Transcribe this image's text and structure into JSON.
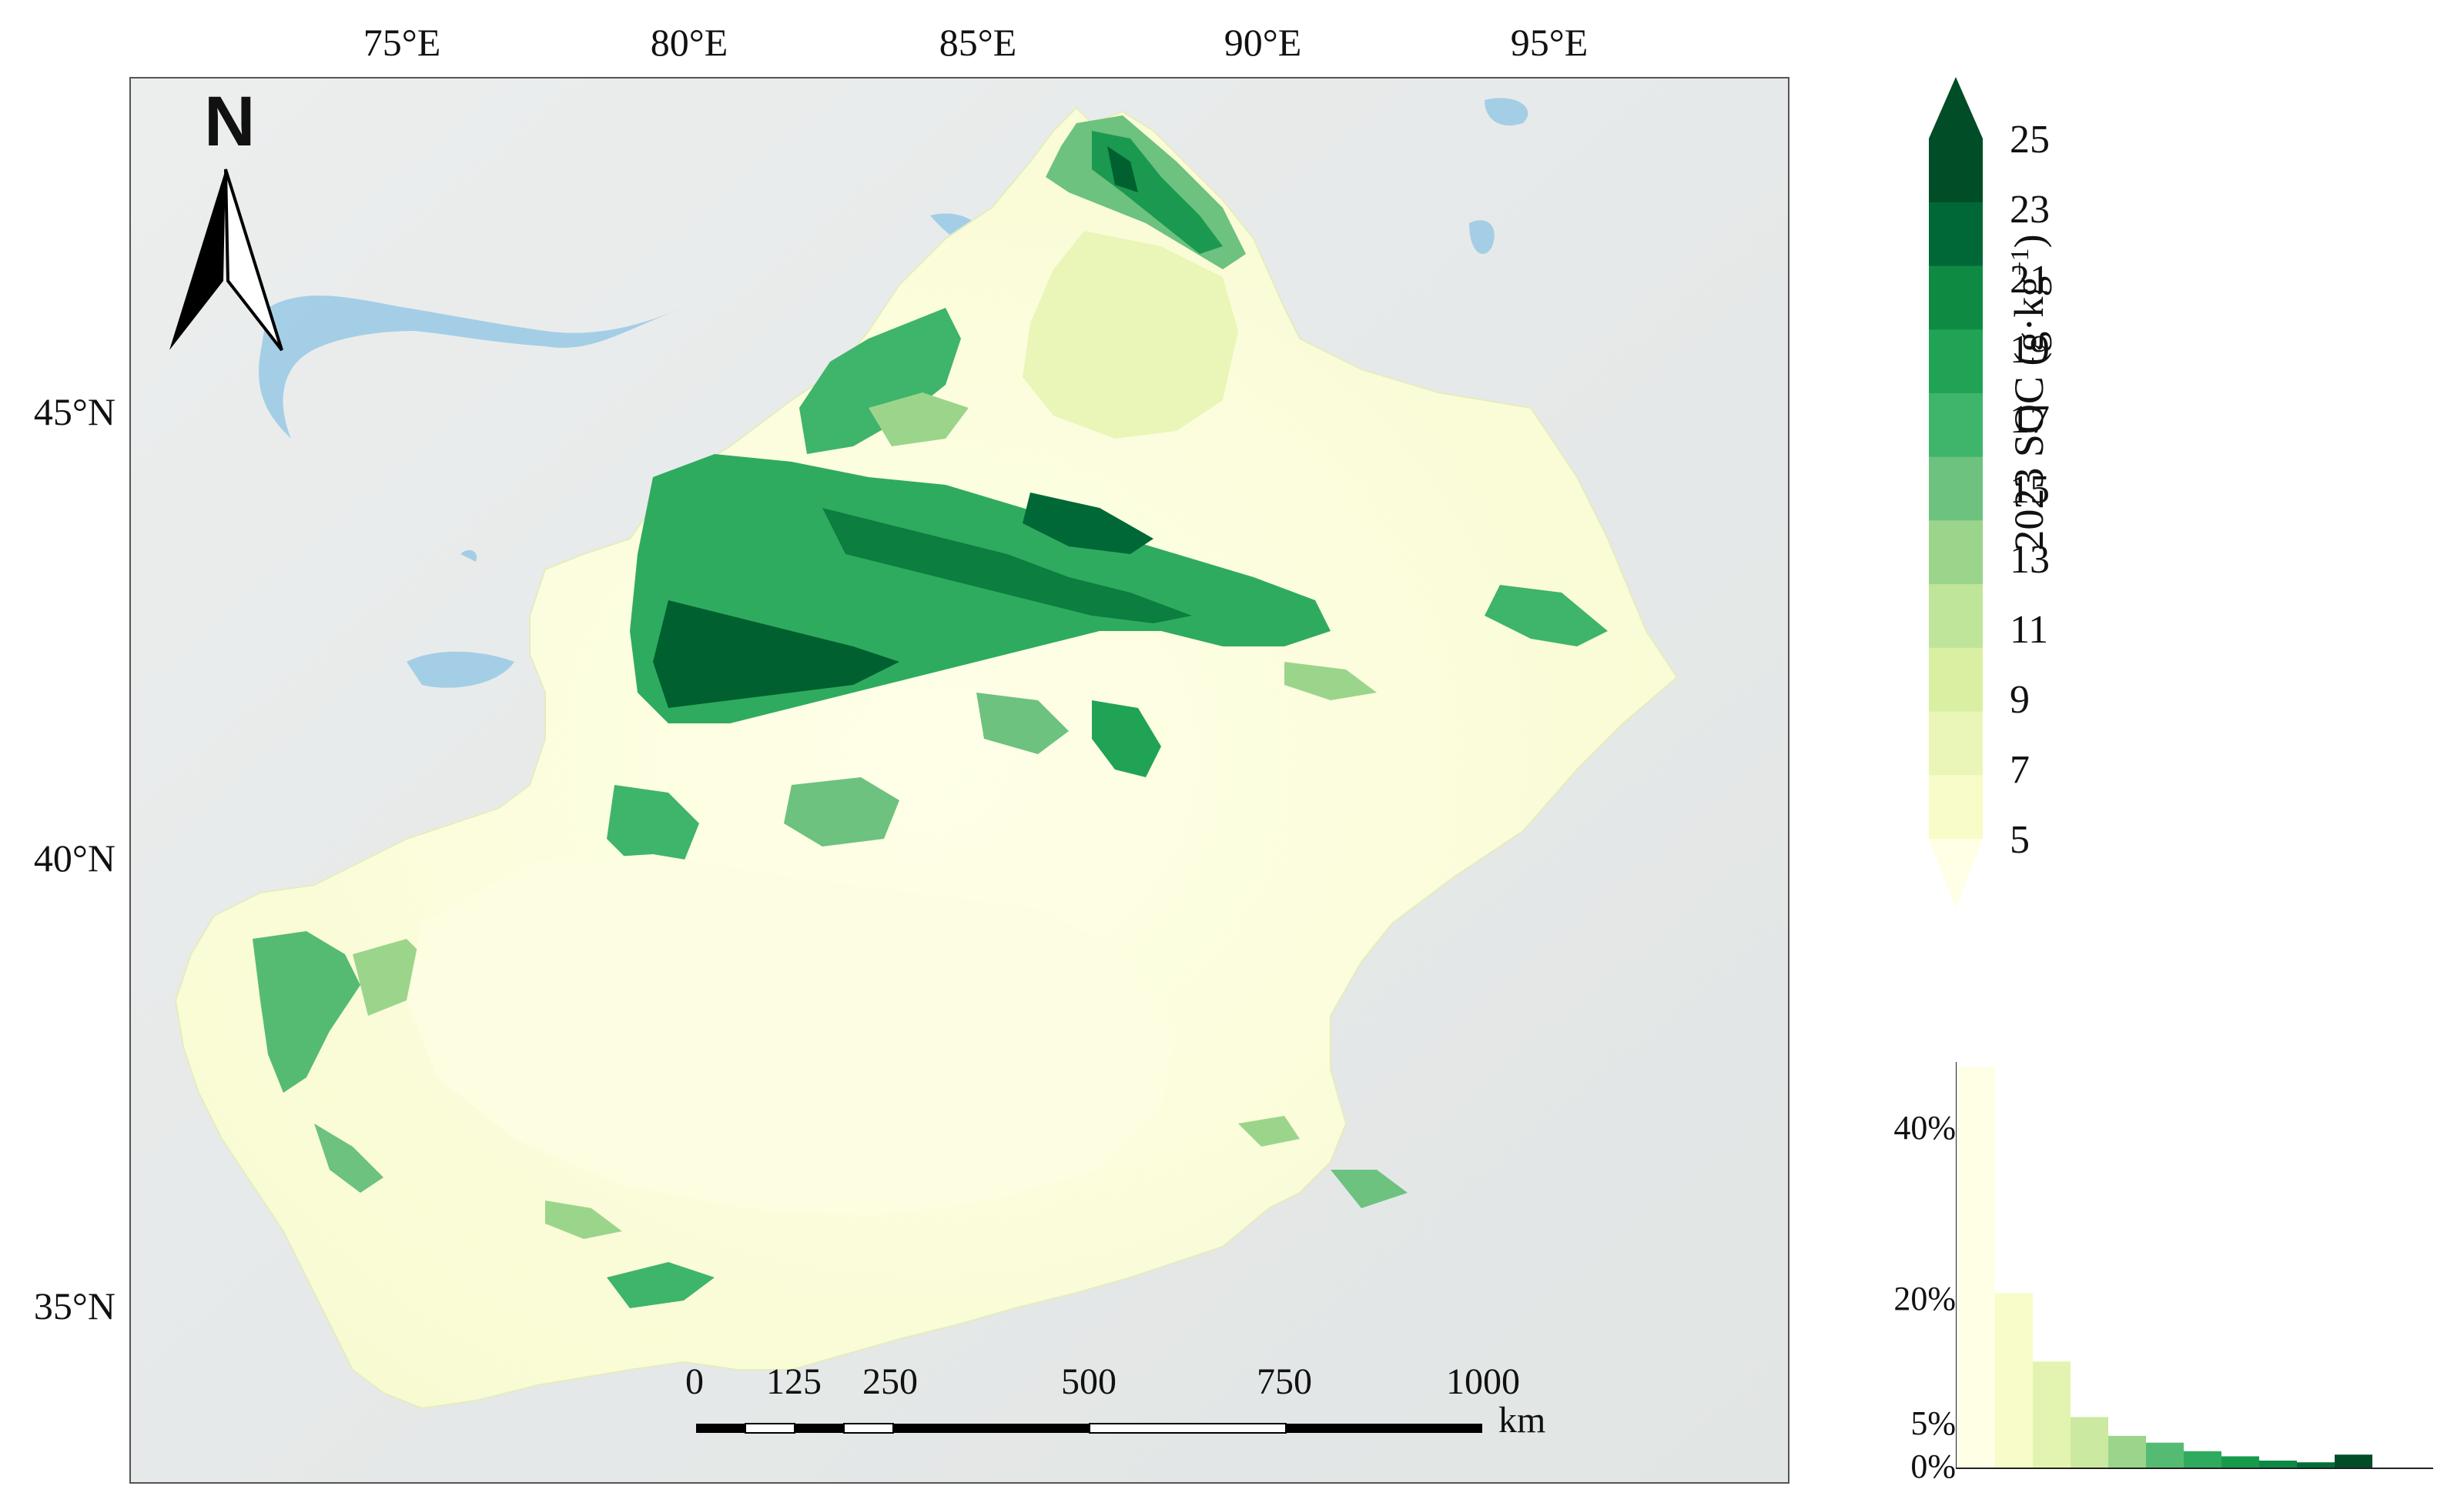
{
  "north_arrow": {
    "label": "N"
  },
  "graticule": {
    "lon_labels": [
      "75°E",
      "80°E",
      "85°E",
      "90°E",
      "95°E"
    ],
    "lat_labels": [
      "45°N",
      "40°N",
      "35°N"
    ]
  },
  "scale_bar": {
    "labels": [
      "0",
      "125",
      "250",
      "500",
      "750",
      "1000"
    ],
    "unit": "km"
  },
  "legend": {
    "title_text": "2023 SOC",
    "title_unit": "(g·kg",
    "title_exp": "−1",
    "title_close": ")",
    "tick_labels": [
      "25",
      "23",
      "21",
      "19",
      "17",
      "15",
      "13",
      "11",
      "9",
      "7",
      "5"
    ],
    "colors": [
      "#ffffe5",
      "#f7fcc8",
      "#e9f6b8",
      "#d9f0a3",
      "#bfe59a",
      "#9bd58b",
      "#6cc27e",
      "#3fb46b",
      "#21a355",
      "#0f8a43",
      "#006837",
      "#004d27"
    ]
  },
  "histogram": {
    "y_labels": [
      "40%",
      "20%",
      "5%",
      "0%"
    ],
    "values_percent": [
      47,
      20.5,
      12.5,
      6,
      3.8,
      3,
      2,
      1.4,
      0.9,
      0.7,
      1.6
    ],
    "colors": [
      "#ffffe5",
      "#f7fcc8",
      "#e3f4b0",
      "#cbe9a0",
      "#9bd58b",
      "#56bb72",
      "#2fab5f",
      "#179a4c",
      "#0c8a43",
      "#006f37",
      "#004d27"
    ]
  }
}
